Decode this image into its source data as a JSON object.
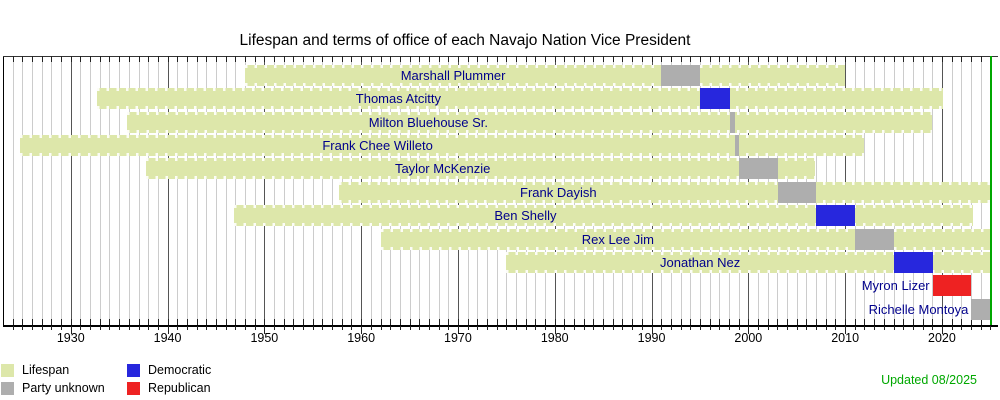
{
  "title": "Lifespan and terms of office of each Navajo Nation Vice President",
  "updated_note": "Updated 08/2025",
  "colors": {
    "lifespan": "#dde7aa",
    "party_unknown": "#aeaeae",
    "democratic": "#2727dd",
    "republican": "#ee2222",
    "now_line": "#00a800",
    "name_label": "#00008b",
    "updated_note": "#00a800",
    "grid_minor": "#cccccc",
    "grid_major": "#555555",
    "axis": "#000000"
  },
  "axis": {
    "start_year": 1923,
    "end_year": 2026,
    "now_year": 2025,
    "decade_ticks": [
      1930,
      1940,
      1950,
      1960,
      1970,
      1980,
      1990,
      2000,
      2010,
      2020
    ],
    "decade_labels": [
      "1930",
      "1940",
      "1950",
      "1960",
      "1970",
      "1980",
      "1990",
      "2000",
      "2010",
      "2020"
    ]
  },
  "legend": [
    {
      "label": "Lifespan",
      "color_key": "lifespan"
    },
    {
      "label": "Party unknown",
      "color_key": "party_unknown"
    },
    {
      "label": "Democratic",
      "color_key": "democratic"
    },
    {
      "label": "Republican",
      "color_key": "republican"
    }
  ],
  "chart_data": {
    "type": "gantt-timeline",
    "title": "Lifespan and terms of office of each Navajo Nation Vice President",
    "xlim": [
      1923,
      2026
    ],
    "grid": "yearly minor, decade major",
    "now_marker": 2025,
    "rows": [
      {
        "name": "Marshall Plummer",
        "birth": 1948.0,
        "death": 2010.0,
        "term_start": 1991.0,
        "term_end": 1995.0,
        "party": "unknown"
      },
      {
        "name": "Thomas Atcitty",
        "birth": 1932.7,
        "death": 2020.1,
        "term_start": 1995.0,
        "term_end": 1998.1,
        "party": "democratic"
      },
      {
        "name": "Milton Bluehouse Sr.",
        "birth": 1935.8,
        "death": 2019.0,
        "term_start": 1998.1,
        "term_end": 1998.6,
        "party": "unknown"
      },
      {
        "name": "Frank Chee Willeto",
        "birth": 1924.8,
        "death": 2011.9,
        "term_start": 1998.6,
        "term_end": 1999.04,
        "party": "unknown"
      },
      {
        "name": "Taylor McKenzie",
        "birth": 1937.8,
        "death": 2006.9,
        "term_start": 1999.04,
        "term_end": 2003.04,
        "party": "unknown"
      },
      {
        "name": "Frank Dayish",
        "birth": 1957.7,
        "death": "present",
        "term_start": 2003.04,
        "term_end": 2007.04,
        "party": "unknown"
      },
      {
        "name": "Ben Shelly",
        "birth": 1946.9,
        "death": 2023.2,
        "term_start": 2007.04,
        "term_end": 2011.04,
        "party": "democratic"
      },
      {
        "name": "Rex Lee Jim",
        "birth": 1962.0,
        "death": "present",
        "term_start": 2011.04,
        "term_end": 2015.04,
        "party": "unknown"
      },
      {
        "name": "Jonathan Nez",
        "birth": 1975.0,
        "death": "present",
        "term_start": 2015.04,
        "term_end": 2019.04,
        "party": "democratic"
      },
      {
        "name": "Myron Lizer",
        "birth": null,
        "death": null,
        "term_start": 2019.04,
        "term_end": 2023.04,
        "party": "republican"
      },
      {
        "name": "Richelle Montoya",
        "birth": null,
        "death": null,
        "term_start": 2023.04,
        "term_end": "present",
        "party": "unknown"
      }
    ]
  }
}
